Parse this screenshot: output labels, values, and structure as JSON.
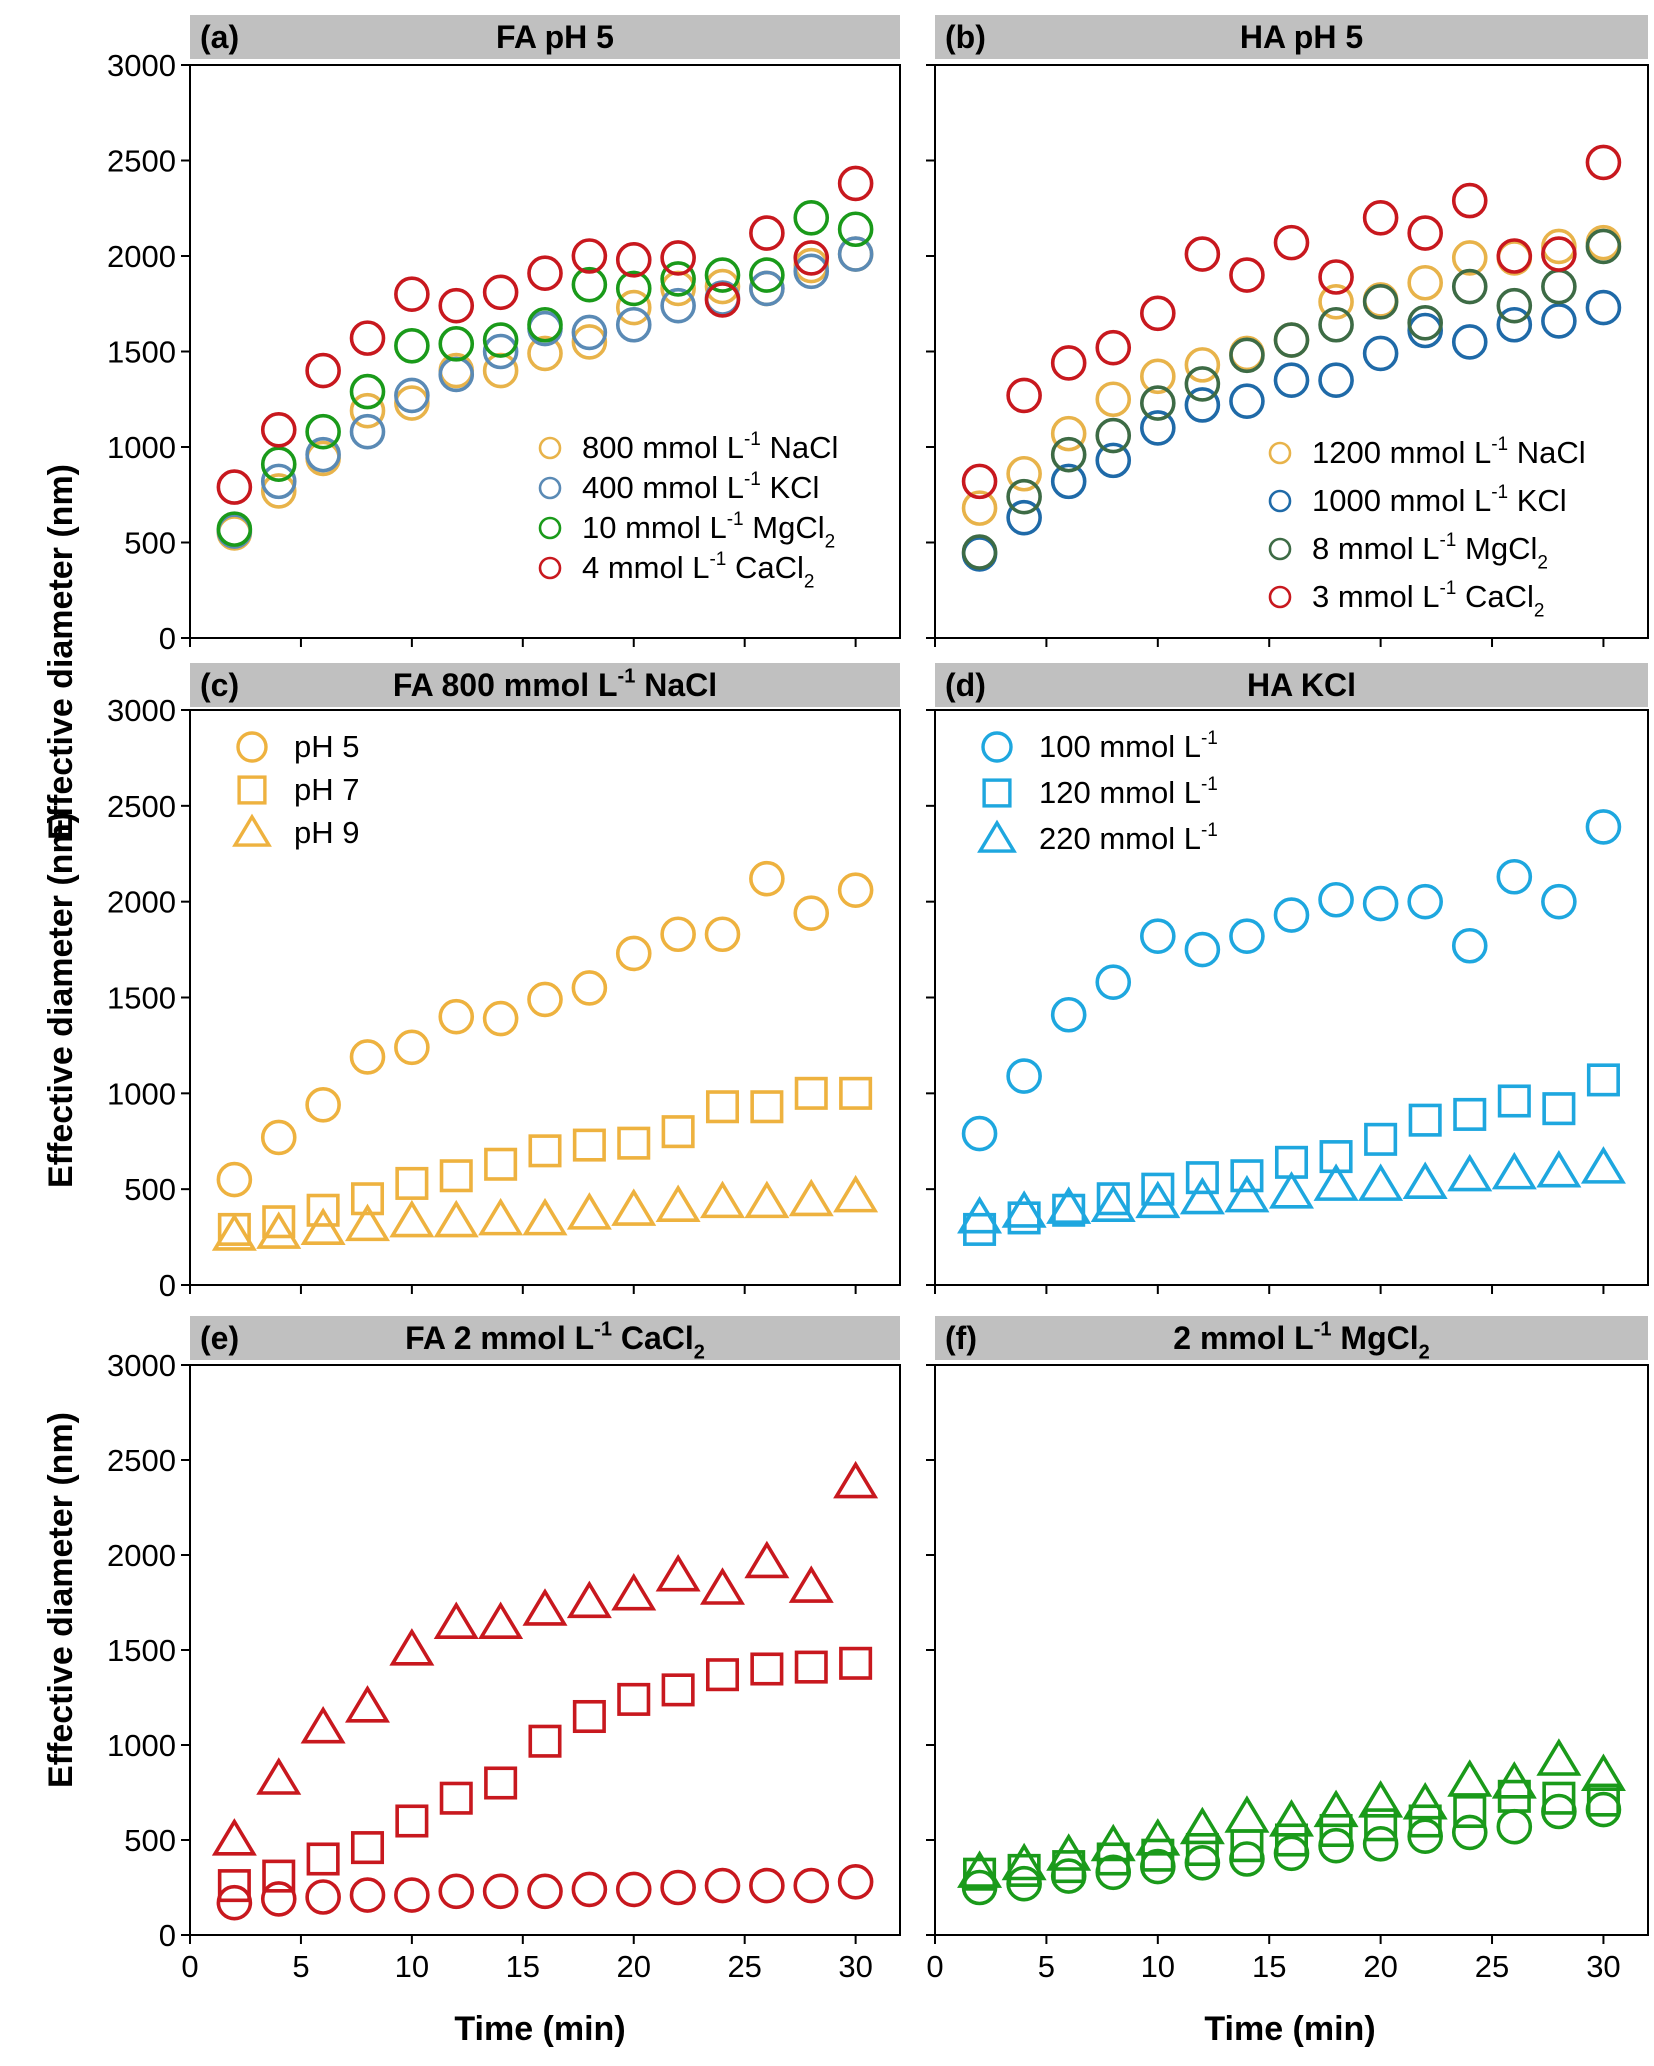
{
  "figure": {
    "ylabel": "Effective diameter (nm)",
    "xlabel": "Time (min)",
    "ylim": [
      0,
      3000
    ],
    "yticks": [
      "0",
      "500",
      "1000",
      "1500",
      "2000",
      "2500",
      "3000"
    ],
    "xlim": [
      0,
      32
    ],
    "xticks": [
      "0",
      "5",
      "10",
      "15",
      "20",
      "25",
      "30"
    ]
  },
  "colors": {
    "header_bg": "#c0c0c0",
    "axis": "#000000"
  },
  "chart_data": [
    {
      "type": "scatter",
      "letter": "(a)",
      "title": {
        "pre": "FA pH 5"
      },
      "legend_position": "bottom-right",
      "x": [
        2,
        4,
        6,
        8,
        10,
        12,
        14,
        16,
        18,
        20,
        22,
        24,
        26,
        28,
        30
      ],
      "series": [
        {
          "name": {
            "pre": "800 mmol L",
            "sup": "-1",
            "post": " NaCl"
          },
          "marker": "circle",
          "color": "#e8b34a",
          "values": [
            550,
            770,
            940,
            1190,
            1230,
            1400,
            1400,
            1490,
            1550,
            1730,
            1830,
            1840,
            1830,
            1950,
            2010
          ]
        },
        {
          "name": {
            "pre": "400 mmol L",
            "sup": "-1",
            "post": " KCl"
          },
          "marker": "circle",
          "color": "#5a8ab5",
          "values": [
            560,
            820,
            960,
            1080,
            1270,
            1380,
            1500,
            1620,
            1600,
            1640,
            1740,
            1780,
            1830,
            1920,
            2010
          ]
        },
        {
          "name": {
            "pre": "10 mmol L",
            "sup": "-1",
            "post": " MgCl",
            "sub": "2"
          },
          "marker": "circle",
          "color": "#1a9a1a",
          "values": [
            570,
            910,
            1080,
            1290,
            1530,
            1540,
            1560,
            1640,
            1850,
            1830,
            1880,
            1900,
            1900,
            2200,
            2140
          ]
        },
        {
          "name": {
            "pre": "4 mmol L",
            "sup": "-1",
            "post": " CaCl",
            "sub": "2"
          },
          "marker": "circle",
          "color": "#c8181e",
          "values": [
            790,
            1090,
            1400,
            1570,
            1800,
            1740,
            1810,
            1910,
            2000,
            1980,
            1990,
            1770,
            2120,
            1990,
            2380
          ]
        }
      ]
    },
    {
      "type": "scatter",
      "letter": "(b)",
      "title": {
        "pre": "HA pH 5"
      },
      "legend_position": "bottom-right",
      "x": [
        2,
        4,
        6,
        8,
        10,
        12,
        14,
        16,
        18,
        20,
        22,
        24,
        26,
        28,
        30
      ],
      "series": [
        {
          "name": {
            "pre": "1200 mmol L",
            "sup": "-1",
            "post": " NaCl"
          },
          "marker": "circle",
          "color": "#e8b34a",
          "values": [
            680,
            860,
            1070,
            1250,
            1370,
            1430,
            1490,
            1560,
            1760,
            1770,
            1860,
            1990,
            1990,
            2050,
            2070
          ]
        },
        {
          "name": {
            "pre": "1000 mmol L",
            "sup": "-1",
            "post": " KCl"
          },
          "marker": "circle",
          "color": "#1f6aa8",
          "values": [
            440,
            630,
            820,
            930,
            1100,
            1220,
            1240,
            1350,
            1350,
            1490,
            1610,
            1550,
            1640,
            1660,
            1730
          ]
        },
        {
          "name": {
            "pre": "8 mmol L",
            "sup": "-1",
            "post": " MgCl",
            "sub": "2"
          },
          "marker": "circle",
          "color": "#3d6b45",
          "values": [
            450,
            740,
            960,
            1060,
            1230,
            1330,
            1480,
            1560,
            1640,
            1760,
            1650,
            1840,
            1740,
            1840,
            2050
          ]
        },
        {
          "name": {
            "pre": "3 mmol L",
            "sup": "-1",
            "post": " CaCl",
            "sub": "2"
          },
          "marker": "circle",
          "color": "#c8181e",
          "values": [
            820,
            1270,
            1440,
            1520,
            1700,
            2010,
            1900,
            2070,
            1890,
            2200,
            2120,
            2290,
            2000,
            2010,
            2490
          ]
        }
      ]
    },
    {
      "type": "scatter",
      "letter": "(c)",
      "title": {
        "pre": "FA 800 mmol L",
        "sup": "-1",
        "post": " NaCl"
      },
      "legend_position": "top-left",
      "x": [
        2,
        4,
        6,
        8,
        10,
        12,
        14,
        16,
        18,
        20,
        22,
        24,
        26,
        28,
        30
      ],
      "series": [
        {
          "name": {
            "pre": "pH 5"
          },
          "marker": "circle",
          "color": "#eeb23f",
          "values": [
            550,
            770,
            940,
            1190,
            1240,
            1400,
            1390,
            1490,
            1550,
            1730,
            1830,
            1830,
            2120,
            1940,
            2060
          ]
        },
        {
          "name": {
            "pre": "pH 7"
          },
          "marker": "square",
          "color": "#eeb23f",
          "values": [
            290,
            330,
            390,
            450,
            530,
            570,
            630,
            700,
            730,
            740,
            800,
            930,
            930,
            1000,
            1000
          ]
        },
        {
          "name": {
            "pre": "pH 9"
          },
          "marker": "triangle",
          "color": "#eeb23f",
          "values": [
            260,
            270,
            290,
            310,
            330,
            330,
            340,
            340,
            370,
            390,
            410,
            430,
            430,
            440,
            460
          ]
        }
      ]
    },
    {
      "type": "scatter",
      "letter": "(d)",
      "title": {
        "pre": "HA KCl"
      },
      "legend_position": "top-left",
      "x": [
        2,
        4,
        6,
        8,
        10,
        12,
        14,
        16,
        18,
        20,
        22,
        24,
        26,
        28,
        30
      ],
      "series": [
        {
          "name": {
            "pre": "100 mmol L",
            "sup": "-1"
          },
          "marker": "circle",
          "color": "#1ea7df",
          "values": [
            790,
            1090,
            1410,
            1580,
            1820,
            1750,
            1820,
            1930,
            2010,
            1990,
            2000,
            1770,
            2130,
            2000,
            2390
          ]
        },
        {
          "name": {
            "pre": "120 mmol L",
            "sup": "-1"
          },
          "marker": "square",
          "color": "#1ea7df",
          "values": [
            290,
            350,
            390,
            450,
            500,
            560,
            570,
            640,
            670,
            760,
            860,
            890,
            960,
            920,
            1070
          ]
        },
        {
          "name": {
            "pre": "220 mmol L",
            "sup": "-1"
          },
          "marker": "triangle",
          "color": "#1ea7df",
          "values": [
            350,
            380,
            400,
            410,
            430,
            450,
            460,
            480,
            520,
            520,
            530,
            570,
            580,
            590,
            610
          ]
        }
      ]
    },
    {
      "type": "scatter",
      "letter": "(e)",
      "title": {
        "pre": "FA 2 mmol L",
        "sup": "-1",
        "post": " CaCl",
        "sub": "2"
      },
      "legend_position": "none",
      "x": [
        2,
        4,
        6,
        8,
        10,
        12,
        14,
        16,
        18,
        20,
        22,
        24,
        26,
        28,
        30
      ],
      "series": [
        {
          "name": {
            "pre": "circle"
          },
          "marker": "circle",
          "color": "#c8181e",
          "values": [
            170,
            190,
            200,
            210,
            210,
            230,
            230,
            230,
            240,
            240,
            250,
            260,
            260,
            260,
            280
          ]
        },
        {
          "name": {
            "pre": "square"
          },
          "marker": "square",
          "color": "#c8181e",
          "values": [
            260,
            310,
            400,
            460,
            600,
            720,
            800,
            1020,
            1150,
            1240,
            1290,
            1370,
            1400,
            1410,
            1430
          ]
        },
        {
          "name": {
            "pre": "triangle"
          },
          "marker": "triangle",
          "color": "#c8181e",
          "values": [
            500,
            820,
            1090,
            1200,
            1500,
            1640,
            1640,
            1710,
            1750,
            1790,
            1890,
            1820,
            1960,
            1830,
            2380
          ]
        }
      ]
    },
    {
      "type": "scatter",
      "letter": "(f)",
      "title": {
        "pre": "2 mmol L",
        "sup": "-1",
        "post": " MgCl",
        "sub": "2"
      },
      "legend_position": "none",
      "x": [
        2,
        4,
        6,
        8,
        10,
        12,
        14,
        16,
        18,
        20,
        22,
        24,
        26,
        28,
        30
      ],
      "series": [
        {
          "name": {
            "pre": "circle"
          },
          "marker": "circle",
          "color": "#1a9a1a",
          "values": [
            250,
            270,
            310,
            330,
            360,
            380,
            400,
            430,
            470,
            480,
            520,
            540,
            570,
            650,
            660
          ]
        },
        {
          "name": {
            "pre": "square"
          },
          "marker": "square",
          "color": "#1a9a1a",
          "values": [
            320,
            340,
            360,
            400,
            420,
            450,
            470,
            500,
            550,
            580,
            600,
            650,
            730,
            720,
            710
          ]
        },
        {
          "name": {
            "pre": "triangle"
          },
          "marker": "triangle",
          "color": "#1a9a1a",
          "values": [
            330,
            370,
            420,
            470,
            500,
            560,
            620,
            600,
            650,
            700,
            690,
            810,
            800,
            920,
            840
          ]
        }
      ]
    }
  ]
}
